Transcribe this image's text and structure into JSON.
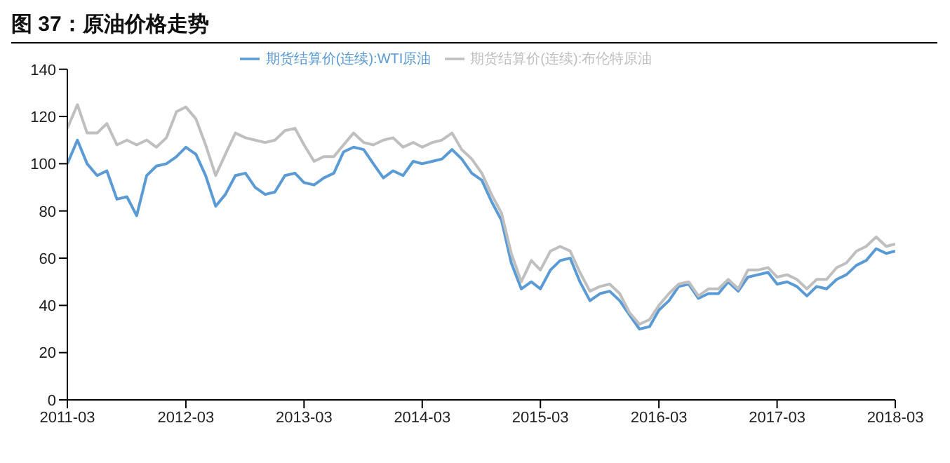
{
  "chart_data": {
    "type": "line",
    "title": "图 37：原油价格走势",
    "x": [
      "2011-03",
      "2011-04",
      "2011-05",
      "2011-06",
      "2011-07",
      "2011-08",
      "2011-09",
      "2011-10",
      "2011-11",
      "2011-12",
      "2012-01",
      "2012-02",
      "2012-03",
      "2012-04",
      "2012-05",
      "2012-06",
      "2012-07",
      "2012-08",
      "2012-09",
      "2012-10",
      "2012-11",
      "2012-12",
      "2013-01",
      "2013-02",
      "2013-03",
      "2013-04",
      "2013-05",
      "2013-06",
      "2013-07",
      "2013-08",
      "2013-09",
      "2013-10",
      "2013-11",
      "2013-12",
      "2014-01",
      "2014-02",
      "2014-03",
      "2014-04",
      "2014-05",
      "2014-06",
      "2014-07",
      "2014-08",
      "2014-09",
      "2014-10",
      "2014-11",
      "2014-12",
      "2015-01",
      "2015-02",
      "2015-03",
      "2015-04",
      "2015-05",
      "2015-06",
      "2015-07",
      "2015-08",
      "2015-09",
      "2015-10",
      "2015-11",
      "2015-12",
      "2016-01",
      "2016-02",
      "2016-03",
      "2016-04",
      "2016-05",
      "2016-06",
      "2016-07",
      "2016-08",
      "2016-09",
      "2016-10",
      "2016-11",
      "2016-12",
      "2017-01",
      "2017-02",
      "2017-03",
      "2017-04",
      "2017-05",
      "2017-06",
      "2017-07",
      "2017-08",
      "2017-09",
      "2017-10",
      "2017-11",
      "2017-12",
      "2018-01",
      "2018-02",
      "2018-03"
    ],
    "series": [
      {
        "name": "期货结算价(连续):WTI原油",
        "color": "#5b9bd5",
        "values": [
          100,
          110,
          100,
          95,
          97,
          85,
          86,
          78,
          95,
          99,
          100,
          103,
          107,
          104,
          95,
          82,
          87,
          95,
          96,
          90,
          87,
          88,
          95,
          96,
          92,
          91,
          94,
          96,
          105,
          107,
          106,
          100,
          94,
          97,
          95,
          101,
          100,
          101,
          102,
          106,
          102,
          96,
          93,
          84,
          76,
          58,
          47,
          50,
          47,
          55,
          59,
          60,
          50,
          42,
          45,
          46,
          42,
          36,
          30,
          31,
          38,
          42,
          48,
          49,
          43,
          45,
          45,
          50,
          46,
          52,
          53,
          54,
          49,
          50,
          48,
          44,
          48,
          47,
          51,
          53,
          57,
          59,
          64,
          62,
          63
        ]
      },
      {
        "name": "期货结算价(连续):布伦特原油",
        "color": "#bfbfbf",
        "values": [
          115,
          125,
          113,
          113,
          117,
          108,
          110,
          108,
          110,
          107,
          111,
          122,
          124,
          119,
          108,
          95,
          104,
          113,
          111,
          110,
          109,
          110,
          114,
          115,
          108,
          101,
          103,
          103,
          108,
          113,
          109,
          108,
          110,
          111,
          107,
          109,
          107,
          109,
          110,
          113,
          106,
          102,
          96,
          87,
          79,
          62,
          50,
          59,
          55,
          63,
          65,
          63,
          54,
          46,
          48,
          49,
          45,
          37,
          32,
          34,
          40,
          45,
          49,
          50,
          44,
          47,
          47,
          51,
          47,
          55,
          55,
          56,
          52,
          53,
          51,
          47,
          51,
          51,
          56,
          58,
          63,
          65,
          69,
          65,
          66
        ]
      }
    ],
    "xlim": [
      "2011-03",
      "2018-03"
    ],
    "xticks": [
      "2011-03",
      "2012-03",
      "2013-03",
      "2014-03",
      "2015-03",
      "2016-03",
      "2017-03",
      "2018-03"
    ],
    "ylim": [
      0,
      140
    ],
    "yticks": [
      0,
      20,
      40,
      60,
      80,
      100,
      120,
      140
    ],
    "grid": false,
    "legend": "top",
    "marker": "none",
    "line_style": "solid"
  }
}
